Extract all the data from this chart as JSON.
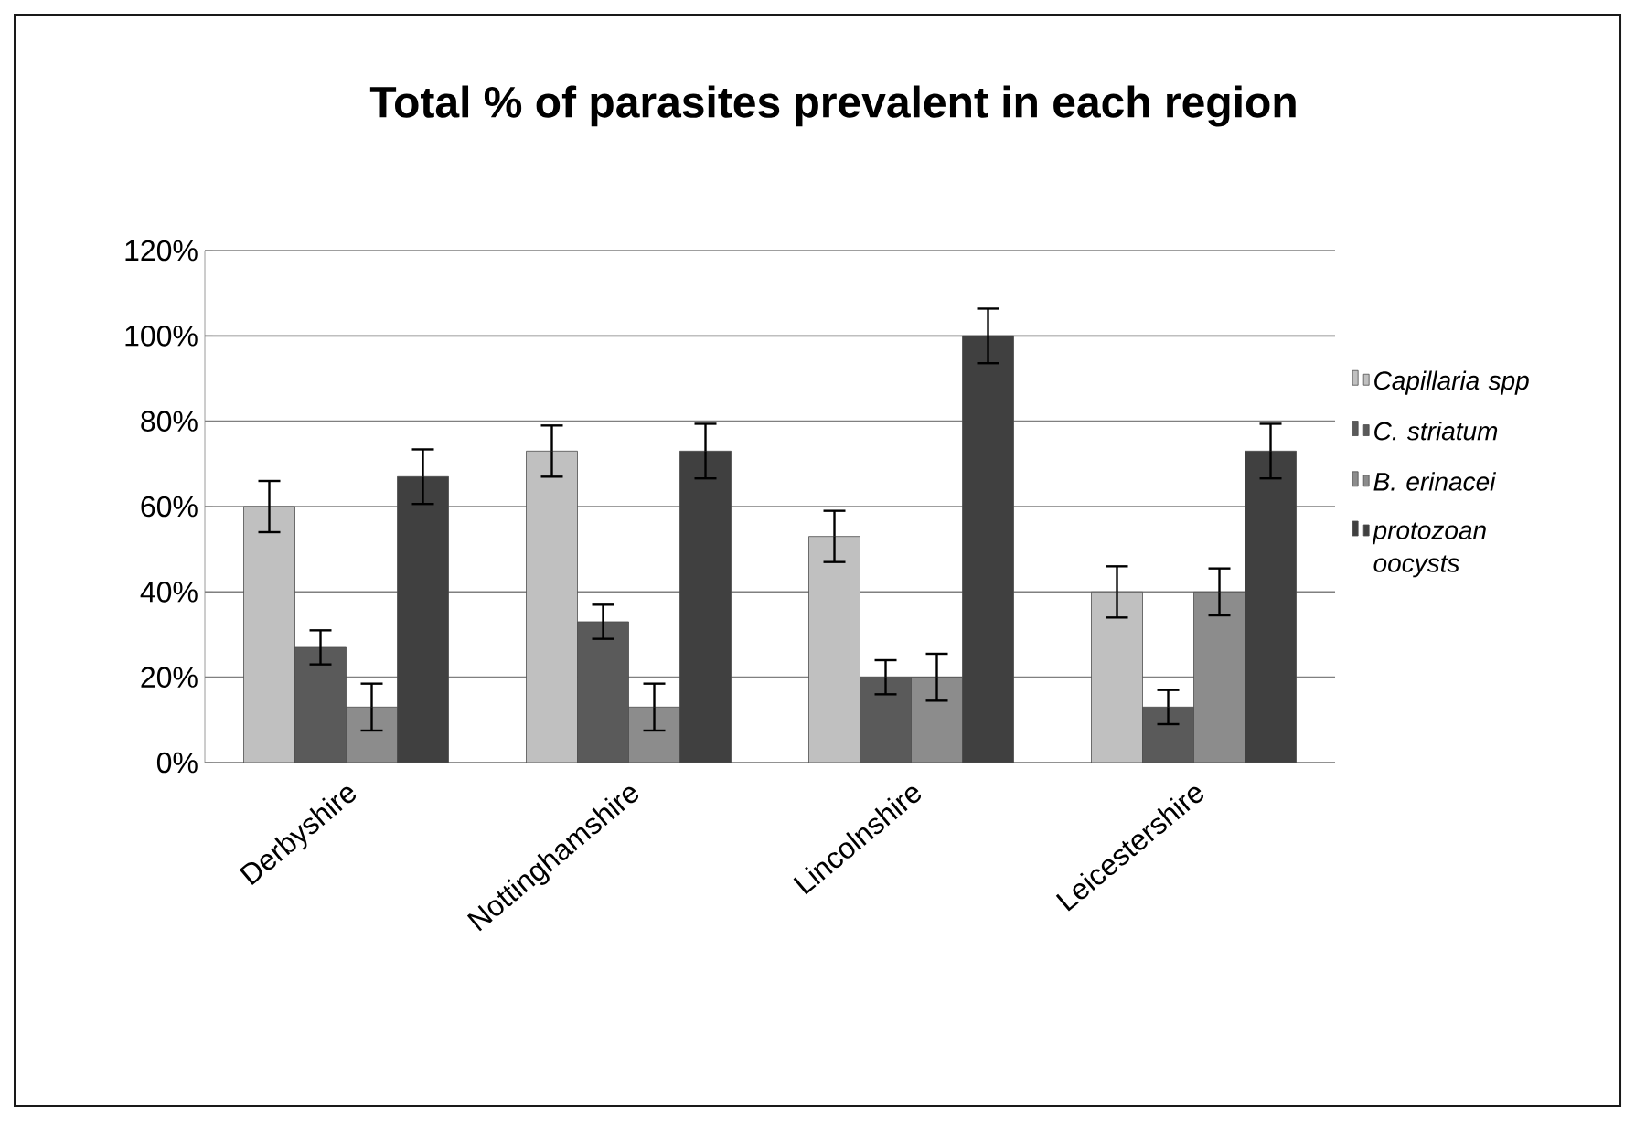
{
  "chart_data": {
    "type": "bar",
    "title": "Total % of parasites prevalent in each region",
    "categories": [
      "Derbyshire",
      "Nottinghamshire",
      "Lincolnshire",
      "Leicestershire"
    ],
    "series": [
      {
        "name": "Capillaria spp",
        "color": "#c0c0c0",
        "values": [
          60,
          73,
          53,
          40
        ],
        "errors": [
          6,
          6,
          6,
          6
        ]
      },
      {
        "name": "C. striatum",
        "color": "#5a5a5a",
        "values": [
          27,
          33,
          20,
          13
        ],
        "errors": [
          4,
          4,
          4,
          4
        ]
      },
      {
        "name": "B. erinacei",
        "color": "#8c8c8c",
        "values": [
          13,
          13,
          20,
          40
        ],
        "errors": [
          5.5,
          5.5,
          5.5,
          5.5
        ]
      },
      {
        "name": "protozoan oocysts",
        "color": "#404040",
        "values": [
          67,
          73,
          100,
          73
        ],
        "errors": [
          6.4,
          6.4,
          6.4,
          6.4
        ]
      }
    ],
    "ylim": [
      0,
      120
    ],
    "yticks": [
      {
        "value": 0,
        "label": "0%"
      },
      {
        "value": 20,
        "label": "20%"
      },
      {
        "value": 40,
        "label": "40%"
      },
      {
        "value": 60,
        "label": "60%"
      },
      {
        "value": 80,
        "label": "80%"
      },
      {
        "value": 100,
        "label": "100%"
      },
      {
        "value": 120,
        "label": "120%"
      }
    ],
    "grid": "y",
    "legend": "right"
  }
}
